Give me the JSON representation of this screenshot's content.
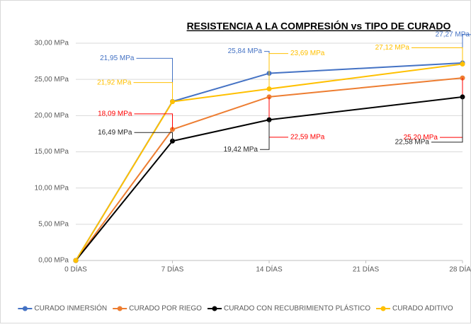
{
  "chart_data": {
    "type": "line",
    "title": "RESISTENCIA A LA COMPRESIÓN vs TIPO DE CURADO",
    "x": [
      0,
      7,
      14,
      28
    ],
    "xlim": [
      0,
      28
    ],
    "xticks": [
      {
        "value": 0,
        "label": "0 DÍAS"
      },
      {
        "value": 7,
        "label": "7 DÍAS"
      },
      {
        "value": 14,
        "label": "14 DÍAS"
      },
      {
        "value": 21,
        "label": "21 DÍAS"
      },
      {
        "value": 28,
        "label": "28 DÍAS"
      }
    ],
    "ylim": [
      0,
      30
    ],
    "yticks": [
      {
        "value": 0,
        "label": "0,00 MPa"
      },
      {
        "value": 5,
        "label": "5,00 MPa"
      },
      {
        "value": 10,
        "label": "10,00 MPa"
      },
      {
        "value": 15,
        "label": "15,00 MPa"
      },
      {
        "value": 20,
        "label": "20,00 MPa"
      },
      {
        "value": 25,
        "label": "25,00 MPa"
      },
      {
        "value": 30,
        "label": "30,00 MPa"
      }
    ],
    "grid": true,
    "legend": "bottom",
    "series": [
      {
        "name": "CURADO INMERSIÓN",
        "color": "#4472c4",
        "label_color": "#4472c4",
        "values": [
          0,
          21.95,
          25.84,
          27.27
        ],
        "value_labels": [
          null,
          "21,95 MPa",
          "25,84 MPa",
          "27,27 MPa"
        ]
      },
      {
        "name": "CURADO POR RIEGO",
        "color": "#ed7d31",
        "label_color": "#ff0000",
        "values": [
          0,
          18.09,
          22.59,
          25.2
        ],
        "value_labels": [
          null,
          "18,09 MPa",
          "22,59 MPa",
          "25,20 MPa"
        ]
      },
      {
        "name": "CURADO CON RECUBRIMIENTO PLÁSTICO",
        "color": "#000000",
        "label_color": "#262626",
        "values": [
          0,
          16.49,
          19.42,
          22.58
        ],
        "value_labels": [
          null,
          "16,49 MPa",
          "19,42 MPa",
          "22,58 MPa"
        ]
      },
      {
        "name": "CURADO ADITIVO",
        "color": "#ffc000",
        "label_color": "#ffc000",
        "values": [
          0,
          21.92,
          23.69,
          27.12
        ],
        "value_labels": [
          null,
          "21,92 MPa",
          "23,69 MPa",
          "27,12 MPa"
        ]
      }
    ]
  }
}
